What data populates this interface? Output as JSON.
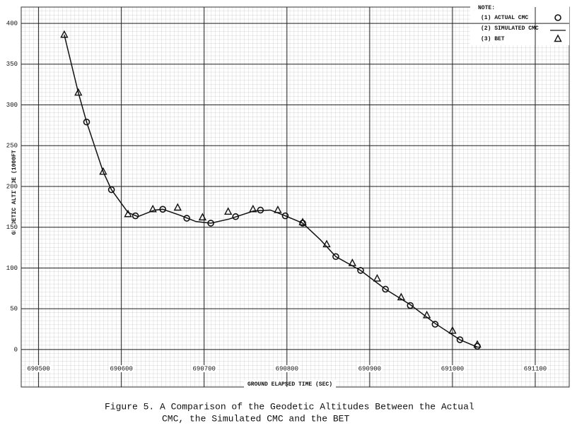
{
  "chart_data": {
    "type": "line",
    "x_label": "GROUND ELAPSED TIME (SEC)",
    "y_label": "GEODETIC ALTITUDE (1000FT)",
    "legend_title": "NOTE:",
    "legend_position": "upper right",
    "caption_lines": [
      "Figure 5.  A Comparison of the Geodetic Altitudes Between the Actual",
      "CMC, the Simulated CMC and the BET"
    ],
    "xlim": [
      690479,
      691141
    ],
    "ylim": [
      -46,
      420
    ],
    "xticks": [
      690500,
      690600,
      690700,
      690800,
      690900,
      691000,
      691100
    ],
    "yticks": [
      0,
      50,
      100,
      150,
      200,
      250,
      300,
      350,
      400
    ],
    "grid": true,
    "series": [
      {
        "name": "(1) ACTUAL CMC",
        "marker": "circle",
        "color": "#111111",
        "x": [
          690558,
          690588,
          690617,
          690650,
          690679,
          690708,
          690738,
          690768,
          690798,
          690819,
          690859,
          690889,
          690919,
          690949,
          690979,
          691009,
          691030
        ],
        "values": [
          279,
          196,
          164,
          172,
          161,
          155,
          163,
          171,
          164,
          155,
          114,
          97,
          74,
          54,
          31,
          12,
          4
        ]
      },
      {
        "name": "(2) SIMULATED CMC",
        "marker": "line",
        "color": "#111111",
        "x": [
          690531,
          690548,
          690558,
          690578,
          690588,
          690608,
          690620,
          690640,
          690650,
          690670,
          690690,
          690708,
          690730,
          690760,
          690780,
          690798,
          690819,
          690840,
          690859,
          690889,
          690919,
          690949,
          690979,
          691009,
          691030
        ],
        "values": [
          386,
          315,
          279,
          218,
          196,
          168,
          163,
          171,
          172,
          165,
          157,
          155,
          160,
          170,
          171,
          164,
          155,
          135,
          114,
          97,
          74,
          55,
          32,
          12,
          3
        ]
      },
      {
        "name": "(3) BET",
        "marker": "triangle",
        "color": "#111111",
        "x": [
          690531,
          690548,
          690578,
          690608,
          690638,
          690668,
          690698,
          690729,
          690759,
          690789,
          690819,
          690848,
          690879,
          690909,
          690938,
          690969,
          691000,
          691030
        ],
        "values": [
          386,
          315,
          218,
          166,
          172,
          174,
          162,
          169,
          172,
          171,
          156,
          129,
          106,
          87,
          64,
          42,
          23,
          6
        ]
      }
    ]
  }
}
